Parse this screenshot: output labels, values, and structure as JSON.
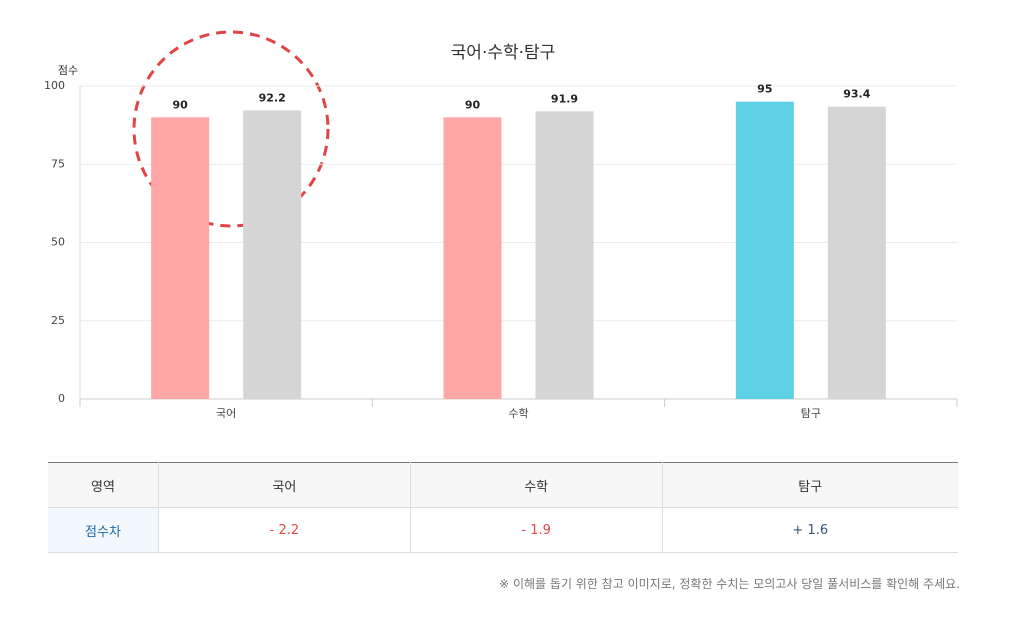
{
  "chart_data": {
    "type": "bar",
    "title": "국어·수학·탐구",
    "y_label": "점수",
    "categories": [
      "국어",
      "수학",
      "탐구"
    ],
    "series": [
      {
        "values": [
          90,
          90,
          95
        ],
        "colors": [
          "#ffa6a6",
          "#ffa6a6",
          "#5bd1e3"
        ]
      },
      {
        "values": [
          92.2,
          91.9,
          93.4
        ],
        "color": "#d5d5d5"
      }
    ],
    "ylim": [
      0,
      100
    ],
    "yticks": [
      0,
      25,
      50,
      75,
      100
    ],
    "grid": true
  },
  "table": {
    "header": [
      "영역",
      "국어",
      "수학",
      "탐구"
    ],
    "rows": [
      [
        "점수차",
        "- 2.2",
        "- 1.9",
        "+ 1.6"
      ]
    ]
  },
  "footnote": "※ 이해를 돕기 위한 참고 이미지로, 정확한 수치는 모의고사 당일 풀서비스를 확인해 주세요."
}
